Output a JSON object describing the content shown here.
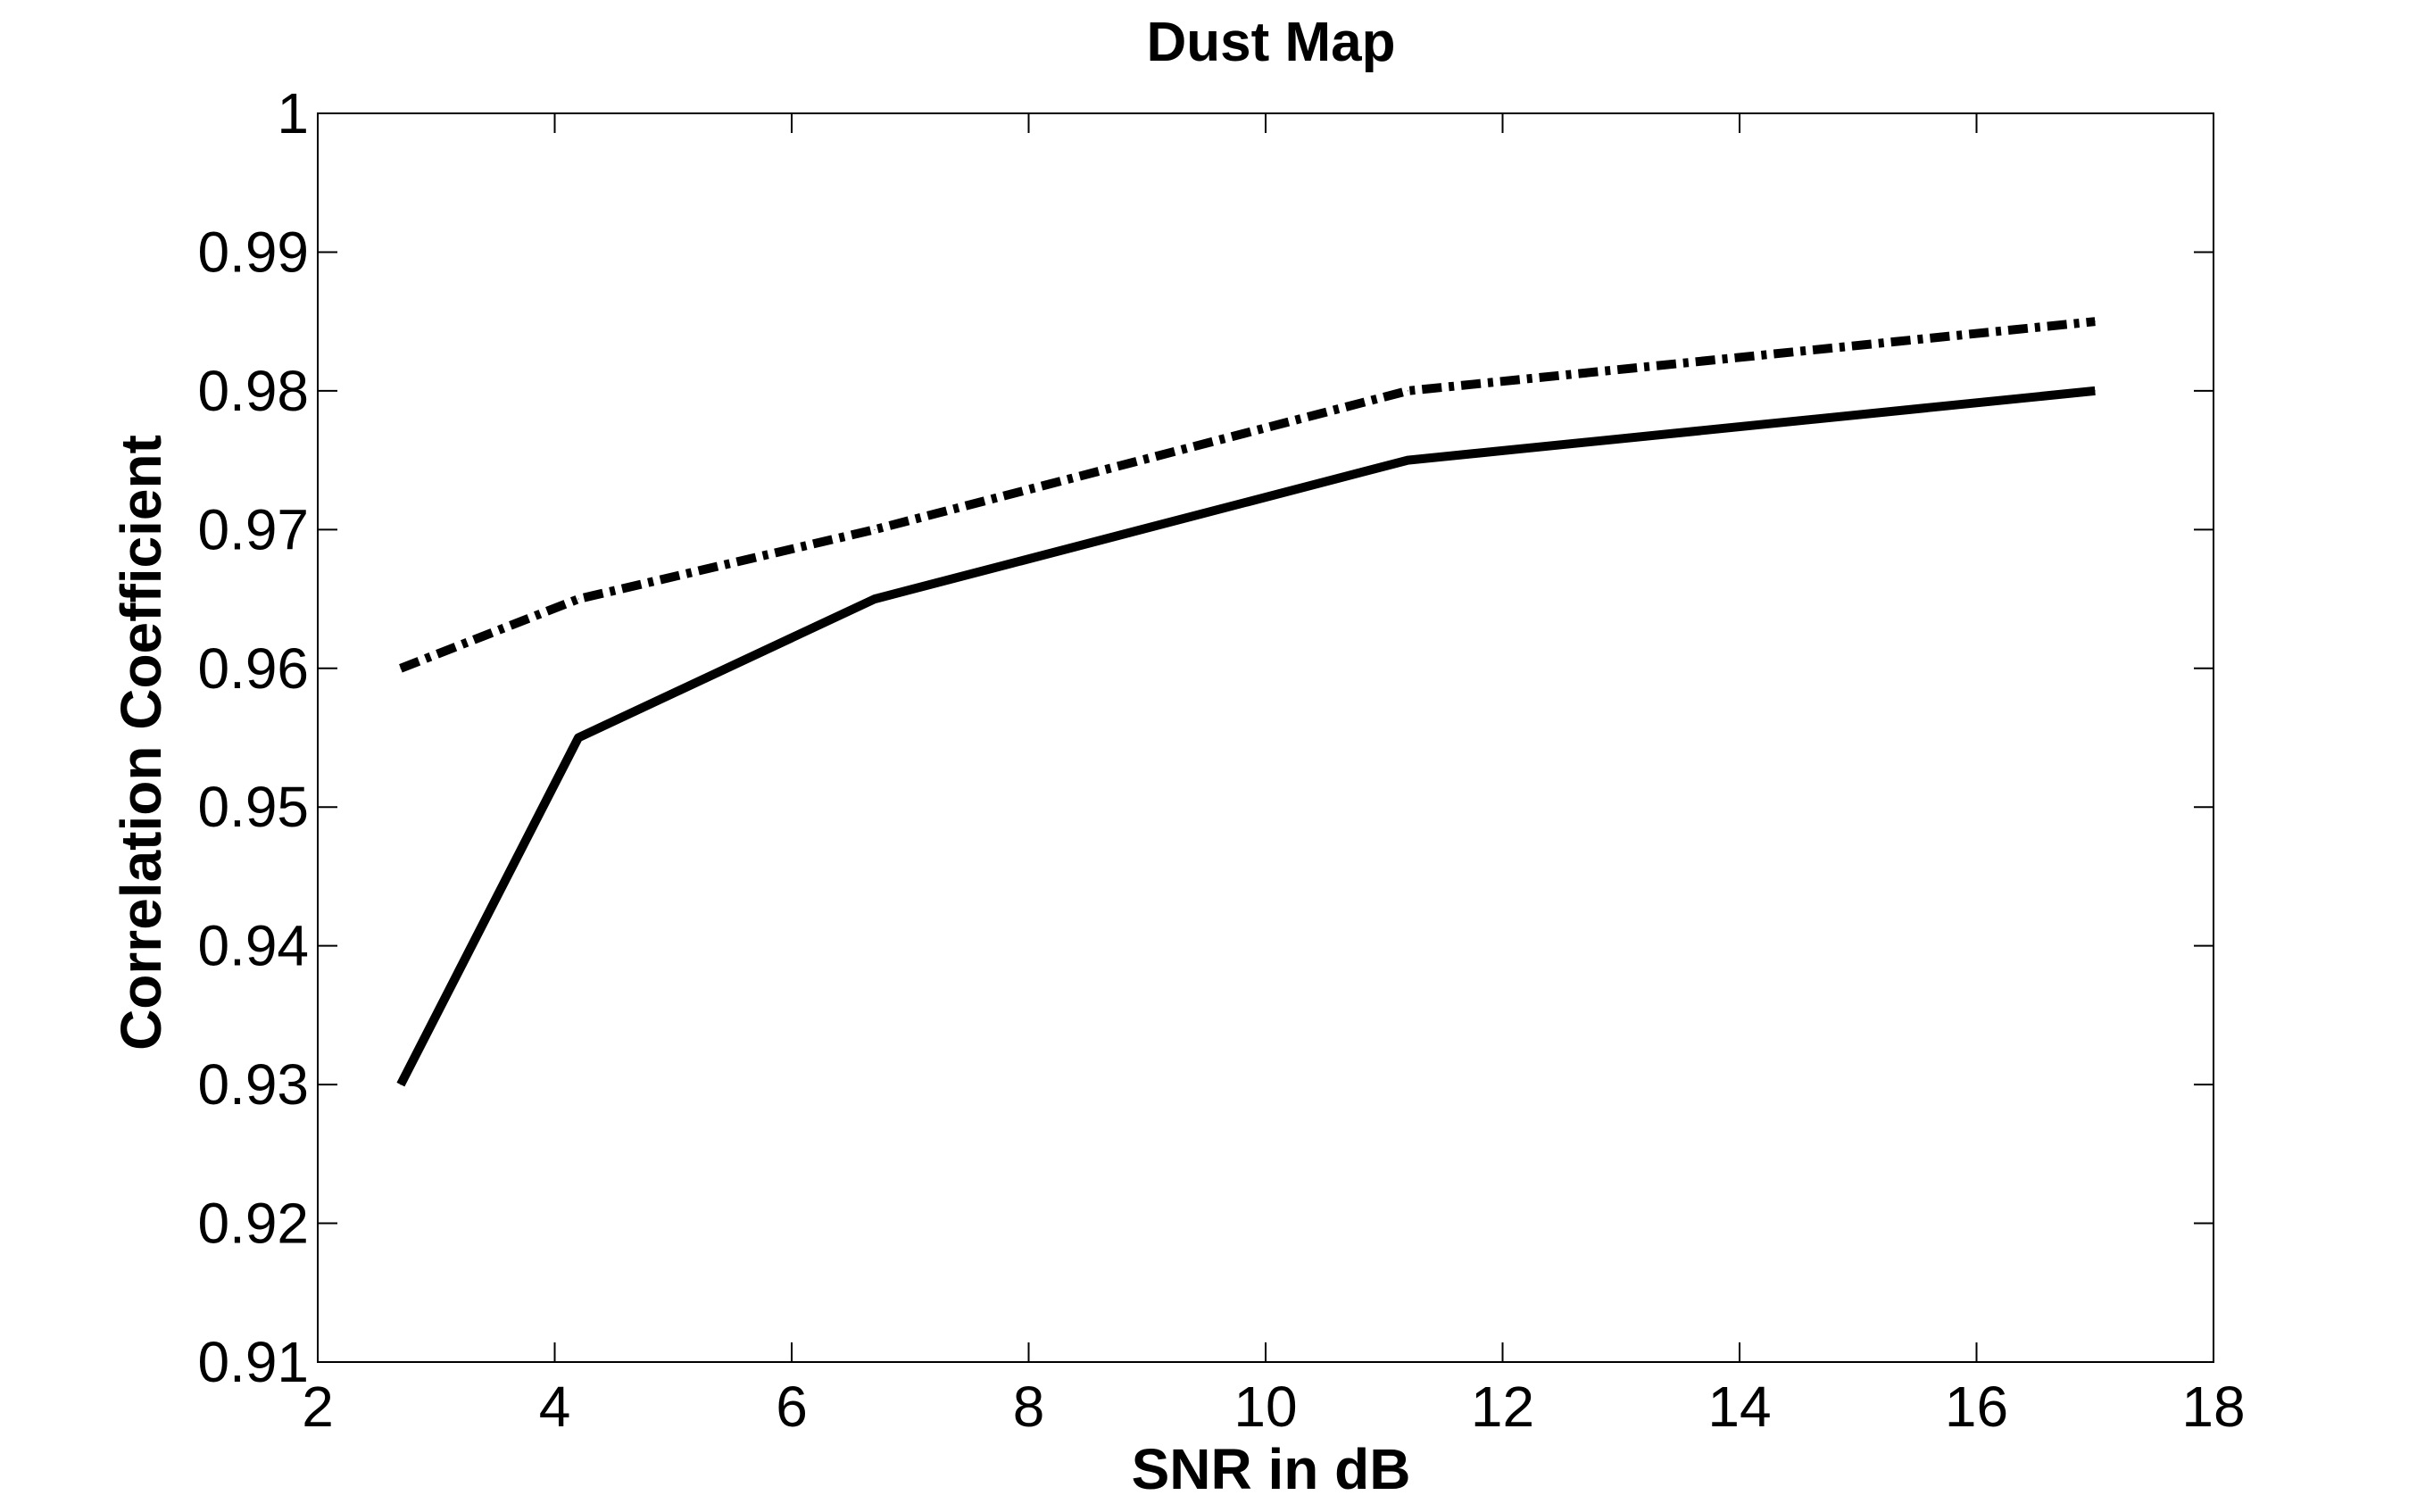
{
  "chart_data": {
    "type": "line",
    "title": "Dust Map",
    "xlabel": "SNR in dB",
    "ylabel": "Correlation Coefficient",
    "xlim": [
      2,
      18
    ],
    "ylim": [
      0.91,
      1
    ],
    "x_ticks": [
      "2",
      "4",
      "6",
      "8",
      "10",
      "12",
      "14",
      "16",
      "18"
    ],
    "y_ticks": [
      "0.91",
      "0.92",
      "0.93",
      "0.94",
      "0.95",
      "0.96",
      "0.97",
      "0.98",
      "0.99",
      "1"
    ],
    "grid": false,
    "series": [
      {
        "style": "solid",
        "color": "#000000",
        "x": [
          2.7,
          4.2,
          6.7,
          11.2,
          17
        ],
        "y": [
          0.93,
          0.955,
          0.965,
          0.975,
          0.98
        ]
      },
      {
        "style": "dash-dot",
        "color": "#000000",
        "x": [
          2.7,
          4.2,
          6.7,
          11.2,
          17
        ],
        "y": [
          0.96,
          0.965,
          0.97,
          0.98,
          0.985
        ]
      }
    ]
  }
}
